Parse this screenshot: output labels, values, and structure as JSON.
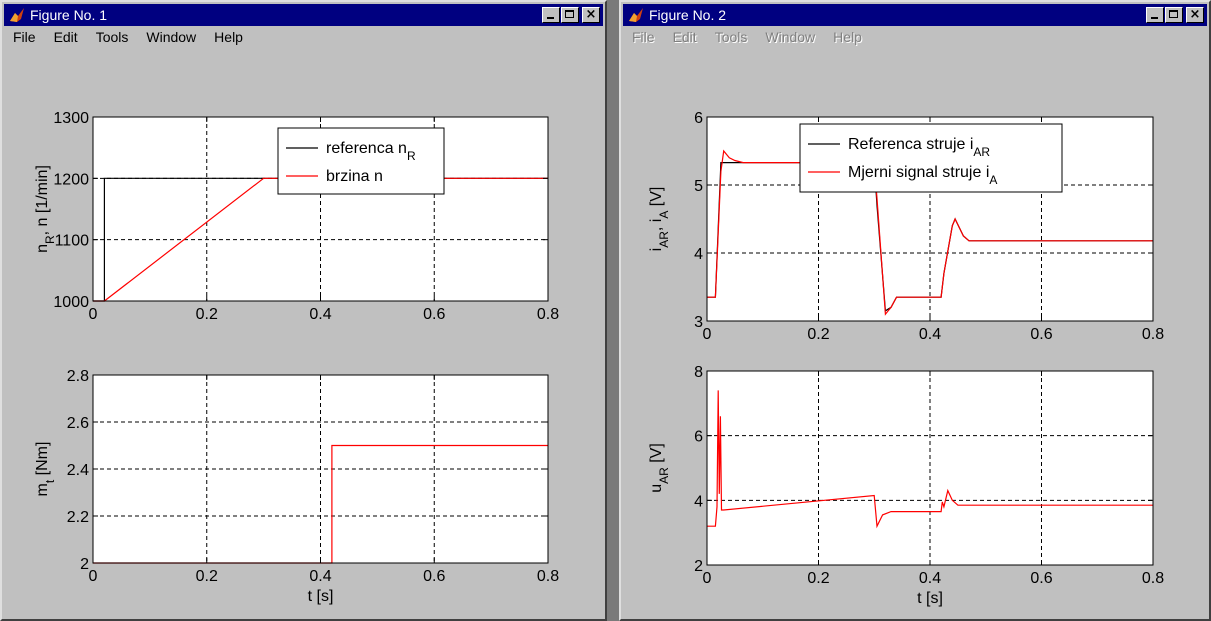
{
  "windows": [
    {
      "title": "Figure No. 1",
      "menu": [
        "File",
        "Edit",
        "Tools",
        "Window",
        "Help"
      ],
      "menu_disabled": false
    },
    {
      "title": "Figure No. 2",
      "menu": [
        "File",
        "Edit",
        "Tools",
        "Window",
        "Help"
      ],
      "menu_disabled": true
    }
  ],
  "chart_data": [
    {
      "type": "line",
      "window": 0,
      "ylabel": "n_R, n [1/min]",
      "xlim": [
        0,
        0.8
      ],
      "ylim": [
        1000,
        1300
      ],
      "xticks": [
        0,
        0.2,
        0.4,
        0.6,
        0.8
      ],
      "yticks": [
        1000,
        1100,
        1200,
        1300
      ],
      "grid": true,
      "legend": "top-right",
      "series": [
        {
          "name": "referenca n_R",
          "color": "#000000",
          "x": [
            0,
            0.02,
            0.02,
            0.8
          ],
          "y": [
            1000,
            1000,
            1200,
            1200
          ]
        },
        {
          "name": "brzina n",
          "color": "#ff0000",
          "x": [
            0,
            0.02,
            0.3,
            0.43,
            0.435,
            0.445,
            0.45,
            0.8
          ],
          "y": [
            1000,
            1000,
            1200,
            1200,
            1199,
            1199,
            1200,
            1200
          ]
        }
      ]
    },
    {
      "type": "line",
      "window": 0,
      "xlabel": "t [s]",
      "ylabel": "m_t [Nm]",
      "xlim": [
        0,
        0.8
      ],
      "ylim": [
        2,
        2.8
      ],
      "xticks": [
        0,
        0.2,
        0.4,
        0.6,
        0.8
      ],
      "yticks": [
        2,
        2.2,
        2.4,
        2.6,
        2.8
      ],
      "grid": true,
      "series": [
        {
          "color": "#ff0000",
          "x": [
            0,
            0.42,
            0.42,
            0.8
          ],
          "y": [
            2,
            2,
            2.5,
            2.5
          ]
        }
      ]
    },
    {
      "type": "line",
      "window": 1,
      "ylabel": "i_AR, i_A [V]",
      "xlim": [
        0,
        0.8
      ],
      "ylim": [
        3,
        6
      ],
      "xticks": [
        0,
        0.2,
        0.4,
        0.6,
        0.8
      ],
      "yticks": [
        3,
        4,
        5,
        6
      ],
      "grid": true,
      "legend": "top-right",
      "series": [
        {
          "name": "Referenca struje i_AR",
          "color": "#000000",
          "x": [
            0,
            0.015,
            0.025,
            0.3,
            0.305,
            0.32,
            0.33,
            0.34,
            0.42,
            0.425,
            0.44,
            0.445,
            0.46,
            0.47,
            0.8
          ],
          "y": [
            3.35,
            3.35,
            5.33,
            5.33,
            4.7,
            3.15,
            3.2,
            3.35,
            3.35,
            3.7,
            4.4,
            4.5,
            4.25,
            4.18,
            4.18
          ]
        },
        {
          "name": "Mjerni signal struje i_A",
          "color": "#ff0000",
          "x": [
            0,
            0.015,
            0.025,
            0.03,
            0.04,
            0.05,
            0.065,
            0.3,
            0.305,
            0.32,
            0.33,
            0.34,
            0.42,
            0.425,
            0.44,
            0.445,
            0.46,
            0.47,
            0.8
          ],
          "y": [
            3.35,
            3.35,
            5.2,
            5.5,
            5.4,
            5.36,
            5.33,
            5.33,
            4.8,
            3.1,
            3.2,
            3.35,
            3.35,
            3.7,
            4.4,
            4.5,
            4.25,
            4.18,
            4.18
          ]
        }
      ]
    },
    {
      "type": "line",
      "window": 1,
      "xlabel": "t [s]",
      "ylabel": "u_AR [V]",
      "xlim": [
        0,
        0.8
      ],
      "ylim": [
        2,
        8
      ],
      "xticks": [
        0,
        0.2,
        0.4,
        0.6,
        0.8
      ],
      "yticks": [
        2,
        4,
        6,
        8
      ],
      "grid": true,
      "series": [
        {
          "color": "#ff0000",
          "x": [
            0,
            0.015,
            0.018,
            0.02,
            0.022,
            0.024,
            0.026,
            0.03,
            0.3,
            0.305,
            0.315,
            0.33,
            0.42,
            0.422,
            0.425,
            0.432,
            0.44,
            0.45,
            0.8
          ],
          "y": [
            3.2,
            3.2,
            3.8,
            7.4,
            4.2,
            6.6,
            3.7,
            3.7,
            4.15,
            3.2,
            3.55,
            3.65,
            3.65,
            3.95,
            3.8,
            4.3,
            4.0,
            3.85,
            3.85
          ]
        }
      ]
    }
  ]
}
